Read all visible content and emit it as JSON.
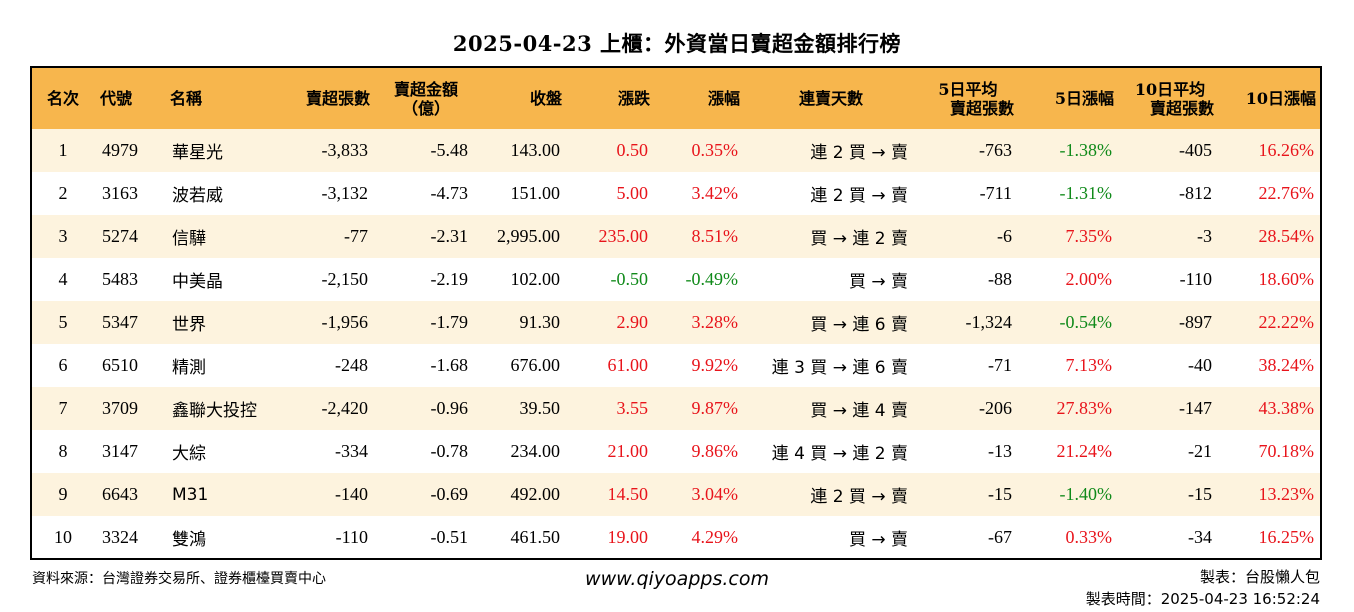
{
  "title": "2025-04-23 上櫃：外資當日賣超金額排行榜",
  "headers": {
    "rank": "名次",
    "code": "代號",
    "name": "名稱",
    "sell_shares": "賣超張數",
    "sell_amount_line1": "賣超金額",
    "sell_amount_line2": "（億）",
    "close": "收盤",
    "change": "漲跌",
    "change_pct": "漲幅",
    "streak": "連賣天數",
    "avg5_line1": "5日平均",
    "avg5_line2": "賣超張數",
    "chg5": "5日漲幅",
    "avg10_line1": "10日平均",
    "avg10_line2": "賣超張數",
    "chg10": "10日漲幅"
  },
  "rows": [
    {
      "rank": "1",
      "code": "4979",
      "name": "華星光",
      "sell_shares": "-3,833",
      "sell_amount": "-5.48",
      "close": "143.00",
      "change": "0.50",
      "change_pct": "0.35%",
      "streak": "連 2 買 → 賣",
      "avg5": "-763",
      "chg5": "-1.38%",
      "avg10": "-405",
      "chg10": "16.26%",
      "change_color": "red",
      "chg5_color": "green",
      "chg10_color": "red"
    },
    {
      "rank": "2",
      "code": "3163",
      "name": "波若威",
      "sell_shares": "-3,132",
      "sell_amount": "-4.73",
      "close": "151.00",
      "change": "5.00",
      "change_pct": "3.42%",
      "streak": "連 2 買 → 賣",
      "avg5": "-711",
      "chg5": "-1.31%",
      "avg10": "-812",
      "chg10": "22.76%",
      "change_color": "red",
      "chg5_color": "green",
      "chg10_color": "red"
    },
    {
      "rank": "3",
      "code": "5274",
      "name": "信驊",
      "sell_shares": "-77",
      "sell_amount": "-2.31",
      "close": "2,995.00",
      "change": "235.00",
      "change_pct": "8.51%",
      "streak": "買 → 連 2 賣",
      "avg5": "-6",
      "chg5": "7.35%",
      "avg10": "-3",
      "chg10": "28.54%",
      "change_color": "red",
      "chg5_color": "red",
      "chg10_color": "red"
    },
    {
      "rank": "4",
      "code": "5483",
      "name": "中美晶",
      "sell_shares": "-2,150",
      "sell_amount": "-2.19",
      "close": "102.00",
      "change": "-0.50",
      "change_pct": "-0.49%",
      "streak": "買 → 賣",
      "avg5": "-88",
      "chg5": "2.00%",
      "avg10": "-110",
      "chg10": "18.60%",
      "change_color": "green",
      "chg5_color": "red",
      "chg10_color": "red"
    },
    {
      "rank": "5",
      "code": "5347",
      "name": "世界",
      "sell_shares": "-1,956",
      "sell_amount": "-1.79",
      "close": "91.30",
      "change": "2.90",
      "change_pct": "3.28%",
      "streak": "買 → 連 6 賣",
      "avg5": "-1,324",
      "chg5": "-0.54%",
      "avg10": "-897",
      "chg10": "22.22%",
      "change_color": "red",
      "chg5_color": "green",
      "chg10_color": "red"
    },
    {
      "rank": "6",
      "code": "6510",
      "name": "精測",
      "sell_shares": "-248",
      "sell_amount": "-1.68",
      "close": "676.00",
      "change": "61.00",
      "change_pct": "9.92%",
      "streak": "連 3 買 → 連 6 賣",
      "avg5": "-71",
      "chg5": "7.13%",
      "avg10": "-40",
      "chg10": "38.24%",
      "change_color": "red",
      "chg5_color": "red",
      "chg10_color": "red"
    },
    {
      "rank": "7",
      "code": "3709",
      "name": "鑫聯大投控",
      "sell_shares": "-2,420",
      "sell_amount": "-0.96",
      "close": "39.50",
      "change": "3.55",
      "change_pct": "9.87%",
      "streak": "買 → 連 4 賣",
      "avg5": "-206",
      "chg5": "27.83%",
      "avg10": "-147",
      "chg10": "43.38%",
      "change_color": "red",
      "chg5_color": "red",
      "chg10_color": "red"
    },
    {
      "rank": "8",
      "code": "3147",
      "name": "大綜",
      "sell_shares": "-334",
      "sell_amount": "-0.78",
      "close": "234.00",
      "change": "21.00",
      "change_pct": "9.86%",
      "streak": "連 4 買 → 連 2 賣",
      "avg5": "-13",
      "chg5": "21.24%",
      "avg10": "-21",
      "chg10": "70.18%",
      "change_color": "red",
      "chg5_color": "red",
      "chg10_color": "red"
    },
    {
      "rank": "9",
      "code": "6643",
      "name": "M31",
      "sell_shares": "-140",
      "sell_amount": "-0.69",
      "close": "492.00",
      "change": "14.50",
      "change_pct": "3.04%",
      "streak": "連 2 買 → 賣",
      "avg5": "-15",
      "chg5": "-1.40%",
      "avg10": "-15",
      "chg10": "13.23%",
      "change_color": "red",
      "chg5_color": "green",
      "chg10_color": "red"
    },
    {
      "rank": "10",
      "code": "3324",
      "name": "雙鴻",
      "sell_shares": "-110",
      "sell_amount": "-0.51",
      "close": "461.50",
      "change": "19.00",
      "change_pct": "4.29%",
      "streak": "買 → 賣",
      "avg5": "-67",
      "chg5": "0.33%",
      "avg10": "-34",
      "chg10": "16.25%",
      "change_color": "red",
      "chg5_color": "red",
      "chg10_color": "red"
    }
  ],
  "footer": {
    "source": "資料來源：台灣證券交易所、證券櫃檯買賣中心",
    "website": "www.qiyoapps.com",
    "maker": "製表：台股懶人包",
    "time": "製表時間：2025-04-23 16:52:24"
  },
  "colors": {
    "header_bg": "#f7b64d",
    "row_alt_bg": "#fdf3de",
    "up": "#e8141b",
    "down": "#108a1a"
  }
}
